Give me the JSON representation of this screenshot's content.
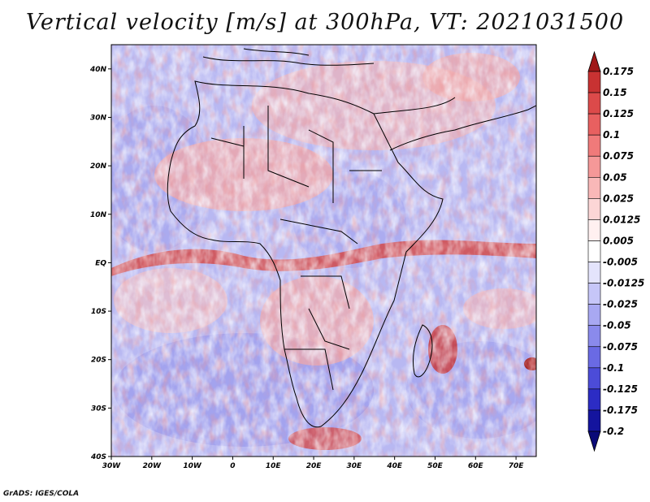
{
  "title": "Vertical velocity [m/s] at 300hPa, VT: 2021031500",
  "footer": "GrADS: IGES/COLA",
  "map": {
    "projection": "latlon",
    "lon_range": [
      -30,
      75
    ],
    "lat_range": [
      -40,
      45
    ],
    "variable": "vertical velocity",
    "units": "m/s",
    "level": "300hPa",
    "valid_time": "2021031500",
    "x_ticks": [
      "30W",
      "20W",
      "10W",
      "0",
      "10E",
      "20E",
      "30E",
      "40E",
      "50E",
      "60E",
      "70E"
    ],
    "y_ticks": [
      "40N",
      "30N",
      "20N",
      "10N",
      "EQ",
      "10S",
      "20S",
      "30S",
      "40S"
    ]
  },
  "colorbar": {
    "labels": [
      "0.175",
      "0.15",
      "0.125",
      "0.1",
      "0.075",
      "0.05",
      "0.025",
      "0.0125",
      "0.005",
      "-0.005",
      "-0.0125",
      "-0.025",
      "-0.05",
      "-0.075",
      "-0.1",
      "-0.125",
      "-0.175",
      "-0.2"
    ],
    "colors": [
      "#a01818",
      "#c83232",
      "#dc4a4a",
      "#e86060",
      "#f07a7a",
      "#f59898",
      "#f9b8b8",
      "#fcd6d6",
      "#fff0f0",
      "#ffffff",
      "#e4e4fc",
      "#c6c6f8",
      "#a8a8f2",
      "#8a8aec",
      "#6a6ae4",
      "#4c4cd8",
      "#2c2cc4",
      "#14149e",
      "#0a0a78"
    ]
  }
}
